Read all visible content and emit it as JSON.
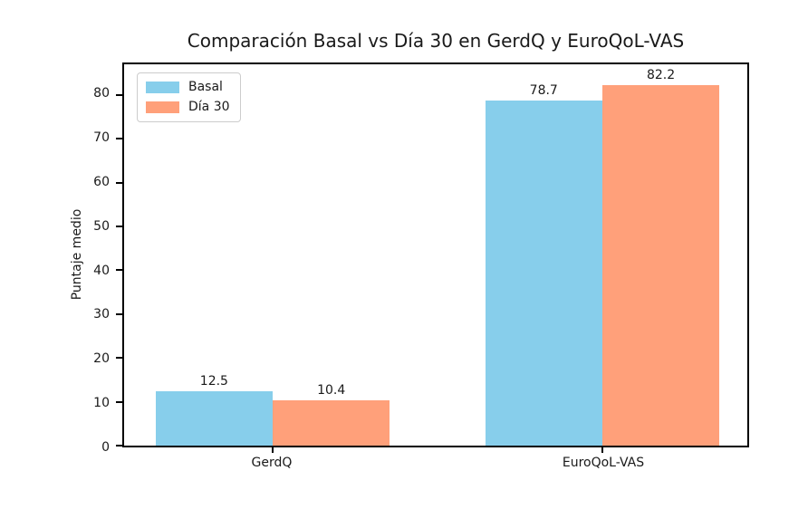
{
  "chart_data": {
    "type": "bar",
    "title": "Comparación Basal vs Día 30 en GerdQ y EuroQoL-VAS",
    "ylabel": "Puntaje medio",
    "xlabel": "",
    "categories": [
      "GerdQ",
      "EuroQoL-VAS"
    ],
    "series": [
      {
        "name": "Basal",
        "color": "#87CEEB",
        "values": [
          12.5,
          78.7
        ],
        "labels": [
          "12.5",
          "78.7"
        ]
      },
      {
        "name": "Día 30",
        "color": "#FFA07A",
        "values": [
          10.4,
          82.2
        ],
        "labels": [
          "10.4",
          "82.2"
        ]
      }
    ],
    "yticks": [
      0,
      10,
      20,
      30,
      40,
      50,
      60,
      70,
      80
    ],
    "ylim": [
      0,
      87
    ],
    "grid": false,
    "legend_position": "upper left",
    "axis_color": "#000000"
  }
}
